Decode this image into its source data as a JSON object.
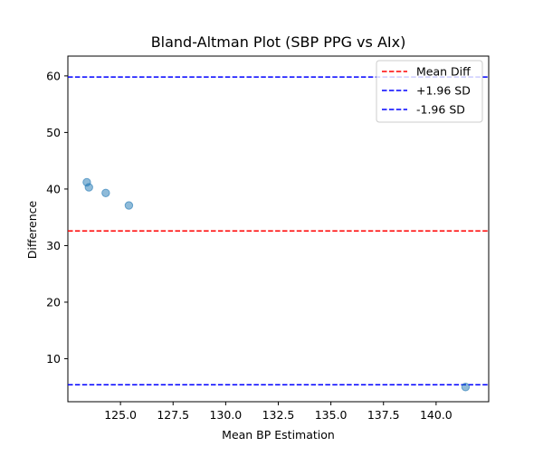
{
  "chart_data": {
    "type": "scatter",
    "title": "Bland-Altman Plot (SBP PPG vs AIx)",
    "xlabel": "Mean BP Estimation",
    "ylabel": "Difference",
    "xlim": [
      122.5,
      142.5
    ],
    "ylim": [
      2.4,
      63.5
    ],
    "x_ticks": [
      125.0,
      127.5,
      130.0,
      132.5,
      135.0,
      137.5,
      140.0
    ],
    "x_tick_labels": [
      "125.0",
      "127.5",
      "130.0",
      "132.5",
      "135.0",
      "137.5",
      "140.0"
    ],
    "y_ticks": [
      10,
      20,
      30,
      40,
      50,
      60
    ],
    "y_tick_labels": [
      "10",
      "20",
      "30",
      "40",
      "50",
      "60"
    ],
    "points": [
      {
        "x": 123.4,
        "y": 41.2
      },
      {
        "x": 123.5,
        "y": 40.3
      },
      {
        "x": 124.3,
        "y": 39.3
      },
      {
        "x": 125.4,
        "y": 37.1
      },
      {
        "x": 141.4,
        "y": 5.0
      }
    ],
    "point_color": "#1f77b4",
    "point_alpha": 0.5,
    "reference_lines": [
      {
        "name": "Mean Diff",
        "value": 32.6,
        "color": "#ff0000",
        "style": "dashed"
      },
      {
        "name": "+1.96 SD",
        "value": 59.8,
        "color": "#0000ff",
        "style": "dashed"
      },
      {
        "name": "-1.96 SD",
        "value": 5.4,
        "color": "#0000ff",
        "style": "dashed"
      }
    ],
    "legend": {
      "placement": "top-right",
      "entries": [
        "Mean Diff",
        "+1.96 SD",
        "-1.96 SD"
      ]
    },
    "grid": false
  }
}
